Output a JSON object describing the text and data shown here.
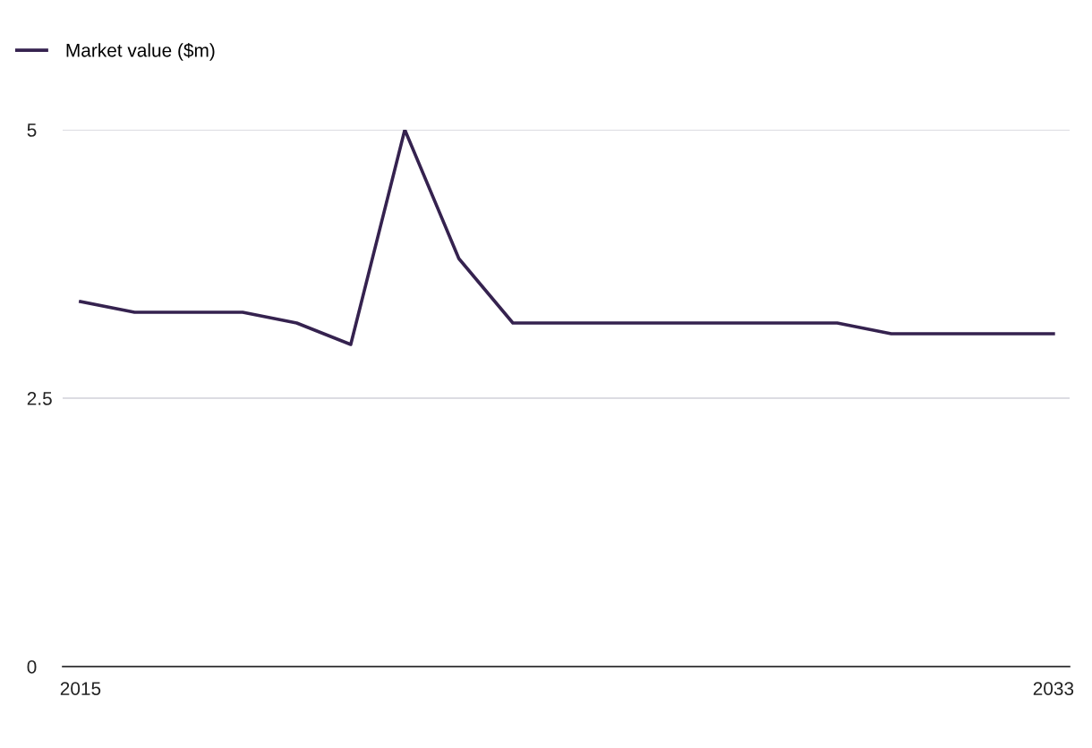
{
  "chart_data": {
    "type": "line",
    "x": [
      2015,
      2016,
      2017,
      2018,
      2019,
      2020,
      2021,
      2022,
      2023,
      2024,
      2025,
      2026,
      2027,
      2028,
      2029,
      2030,
      2031,
      2032,
      2033
    ],
    "series": [
      {
        "name": "Market value ($m)",
        "color": "#35224f",
        "values": [
          3.4,
          3.3,
          3.3,
          3.3,
          3.2,
          3.0,
          5.0,
          3.8,
          3.2,
          3.2,
          3.2,
          3.2,
          3.2,
          3.2,
          3.2,
          3.1,
          3.1,
          3.1,
          3.1
        ]
      }
    ],
    "xlim": [
      2014.67,
      2033.3
    ],
    "xticks": [
      2015,
      2033
    ],
    "ylim": [
      0,
      5
    ],
    "yticks": [
      0,
      2.5,
      5
    ],
    "grid": "y",
    "legend": "top left",
    "marker": "none",
    "line_style": "solid"
  }
}
